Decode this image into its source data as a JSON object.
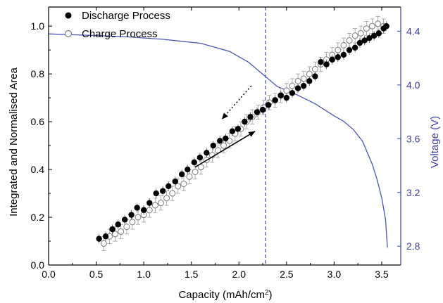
{
  "chart_data": {
    "type": "scatter",
    "title": "",
    "xlabel": "Capacity (mAh/cm",
    "xlabel_sup": "2",
    "xlabel_end": ")",
    "ylabel": "Integrated and Normalised Area",
    "y2label": "Voltage (V)",
    "xlim": [
      0.0,
      3.7
    ],
    "ylim": [
      0.0,
      1.08
    ],
    "y2lim": [
      2.66,
      4.58
    ],
    "x_ticks": [
      0.0,
      0.5,
      1.0,
      1.5,
      2.0,
      2.5,
      3.0,
      3.5
    ],
    "x_tick_labels": [
      "0.0",
      "0.5",
      "1.0",
      "1.5",
      "2.0",
      "2.5",
      "3.0",
      "3.5"
    ],
    "y_ticks": [
      0.0,
      0.2,
      0.4,
      0.6,
      0.8,
      1.0
    ],
    "y_tick_labels": [
      "0.0",
      "0.2",
      "0.4",
      "0.6",
      "0.8",
      "1.0"
    ],
    "y2_ticks": [
      2.8,
      3.2,
      3.6,
      4.0,
      4.4
    ],
    "y2_tick_labels": [
      "2.8",
      "3.2",
      "3.6",
      "4.0",
      "4.4"
    ],
    "grid": false,
    "legend_position": "top-left",
    "colors": {
      "right_axis": "#3a3fa0",
      "voltage_line": "#4a55b5",
      "marker_line": "#dashed-blue",
      "charge_marker": "#7a7a7a",
      "error_bar": "#9a9a9a"
    },
    "series": [
      {
        "name": "Discharge Process",
        "marker": "filled-circle",
        "x": [
          0.53,
          0.6,
          0.67,
          0.73,
          0.8,
          0.87,
          0.93,
          1.0,
          1.06,
          1.13,
          1.2,
          1.26,
          1.33,
          1.4,
          1.46,
          1.53,
          1.59,
          1.66,
          1.73,
          1.8,
          1.86,
          1.93,
          1.99,
          2.06,
          2.12,
          2.19,
          2.25,
          2.31,
          2.38,
          2.44,
          2.5,
          2.56,
          2.62,
          2.68,
          2.74,
          2.8,
          2.86,
          2.92,
          2.98,
          3.04,
          3.1,
          3.16,
          3.22,
          3.27,
          3.32,
          3.37,
          3.42,
          3.47,
          3.52,
          3.55
        ],
        "y": [
          0.11,
          0.12,
          0.15,
          0.17,
          0.19,
          0.21,
          0.24,
          0.23,
          0.26,
          0.3,
          0.31,
          0.33,
          0.35,
          0.38,
          0.4,
          0.43,
          0.45,
          0.47,
          0.5,
          0.52,
          0.53,
          0.56,
          0.57,
          0.6,
          0.62,
          0.64,
          0.65,
          0.67,
          0.69,
          0.71,
          0.7,
          0.72,
          0.74,
          0.75,
          0.77,
          0.79,
          0.85,
          0.84,
          0.86,
          0.87,
          0.88,
          0.9,
          0.91,
          0.93,
          0.94,
          0.95,
          0.96,
          0.97,
          0.99,
          1.0
        ]
      },
      {
        "name": "Charge Process",
        "marker": "open-circle",
        "x": [
          0.58,
          0.64,
          0.7,
          0.76,
          0.82,
          0.88,
          0.94,
          1.0,
          1.06,
          1.12,
          1.18,
          1.24,
          1.3,
          1.36,
          1.42,
          1.48,
          1.54,
          1.6,
          1.66,
          1.72,
          1.78,
          1.84,
          1.9,
          1.96,
          2.02,
          2.08,
          2.14,
          2.2,
          2.26,
          2.32,
          2.38,
          2.44,
          2.5,
          2.56,
          2.62,
          2.68,
          2.74,
          2.8,
          2.86,
          2.92,
          2.98,
          3.04,
          3.1,
          3.16,
          3.22,
          3.28,
          3.34,
          3.4,
          3.46,
          3.52
        ],
        "y": [
          0.09,
          0.12,
          0.13,
          0.14,
          0.16,
          0.18,
          0.2,
          0.21,
          0.23,
          0.25,
          0.26,
          0.28,
          0.3,
          0.33,
          0.34,
          0.37,
          0.39,
          0.41,
          0.44,
          0.46,
          0.48,
          0.5,
          0.52,
          0.55,
          0.57,
          0.6,
          0.62,
          0.64,
          0.66,
          0.68,
          0.69,
          0.71,
          0.73,
          0.75,
          0.77,
          0.78,
          0.8,
          0.82,
          0.84,
          0.86,
          0.88,
          0.9,
          0.92,
          0.94,
          0.96,
          0.97,
          0.99,
          1.0,
          1.01,
          1.0
        ]
      },
      {
        "name": "",
        "axis": "right",
        "style": "line",
        "x": [
          0.0,
          0.4,
          0.8,
          1.2,
          1.6,
          1.9,
          2.1,
          2.25,
          2.4,
          2.6,
          2.8,
          3.0,
          3.1,
          3.2,
          3.3,
          3.4,
          3.45,
          3.5,
          3.52,
          3.54,
          3.56
        ],
        "y": [
          4.38,
          4.37,
          4.36,
          4.34,
          4.31,
          4.25,
          4.17,
          4.08,
          3.99,
          3.93,
          3.86,
          3.77,
          3.73,
          3.67,
          3.58,
          3.41,
          3.3,
          3.16,
          3.08,
          3.0,
          2.79
        ]
      }
    ],
    "vertical_marker_x": 2.28,
    "arrows": [
      {
        "x1": 2.13,
        "y1": 0.75,
        "x2": 1.82,
        "y2": 0.61,
        "style": "dotted"
      },
      {
        "x1": 1.54,
        "y1": 0.41,
        "x2": 2.17,
        "y2": 0.56,
        "style": "solid"
      }
    ]
  }
}
